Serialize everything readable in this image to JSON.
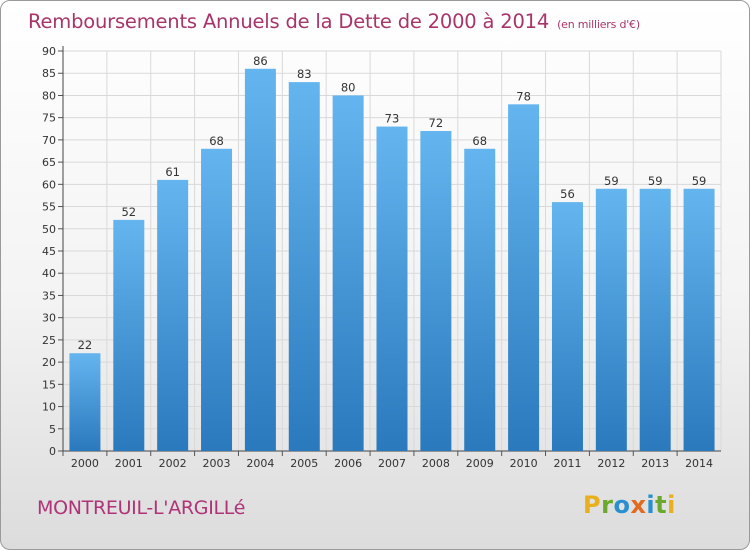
{
  "header": {
    "title": "Remboursements Annuels de la Dette de 2000 à 2014",
    "unit": "(en milliers d'€)"
  },
  "footer": {
    "town": "MONTREUIL-L'ARGILLé",
    "logo_letters": [
      {
        "char": "P",
        "color": "#e8b01c"
      },
      {
        "char": "r",
        "color": "#6aa92b"
      },
      {
        "char": "o",
        "color": "#2a8fd0"
      },
      {
        "char": "x",
        "color": "#e06a1e"
      },
      {
        "char": "i",
        "color": "#2a8fd0"
      },
      {
        "char": "t",
        "color": "#6aa92b"
      },
      {
        "char": "i",
        "color": "#e8b01c"
      }
    ]
  },
  "chart_data": {
    "type": "bar",
    "categories": [
      "2000",
      "2001",
      "2002",
      "2003",
      "2004",
      "2005",
      "2006",
      "2007",
      "2008",
      "2009",
      "2010",
      "2011",
      "2012",
      "2013",
      "2014"
    ],
    "values": [
      22,
      52,
      61,
      68,
      86,
      83,
      80,
      73,
      72,
      68,
      78,
      56,
      59,
      59,
      59
    ],
    "ylim": [
      0,
      90
    ],
    "yticks": [
      0,
      5,
      10,
      15,
      20,
      25,
      30,
      35,
      40,
      45,
      50,
      55,
      60,
      65,
      70,
      75,
      80,
      85,
      90
    ],
    "grid": true,
    "bar_color_top": "#64b5ef",
    "bar_color_bottom": "#2a79bd",
    "grid_color": "#d9d9d9"
  }
}
